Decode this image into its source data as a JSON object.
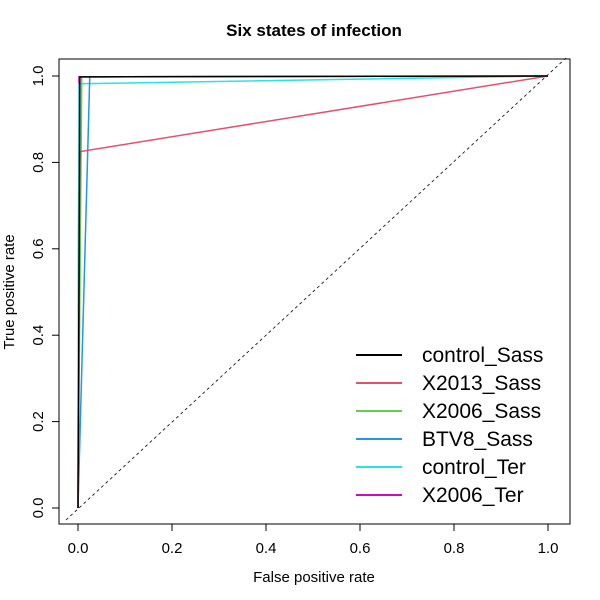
{
  "chart_data": {
    "type": "line",
    "title": "Six states of infection",
    "xlabel": "False positive rate",
    "ylabel": "True positive rate",
    "xlim": [
      0,
      1
    ],
    "ylim": [
      0,
      1
    ],
    "xticks": [
      0,
      0.2,
      0.4,
      0.6,
      0.8,
      1
    ],
    "yticks": [
      0,
      0.2,
      0.4,
      0.6,
      0.8,
      1
    ],
    "xtick_labels": [
      "0.0",
      "0.2",
      "0.4",
      "0.6",
      "0.8",
      "1.0"
    ],
    "ytick_labels": [
      "0.0",
      "0.2",
      "0.4",
      "0.6",
      "0.8",
      "1.0"
    ],
    "legend_position": "bottom-right",
    "diagonal": {
      "x": [
        0,
        1
      ],
      "y": [
        0,
        1
      ],
      "style": "dashed"
    },
    "series": [
      {
        "name": "control_Sass",
        "color": "#000000",
        "x": [
          0,
          0.004,
          1
        ],
        "y": [
          0,
          0.998,
          1
        ]
      },
      {
        "name": "X2013_Sass",
        "color": "#DF536B",
        "x": [
          0,
          0.0,
          0.004,
          1
        ],
        "y": [
          0,
          0.0,
          0.825,
          1
        ]
      },
      {
        "name": "X2006_Sass",
        "color": "#61D04F",
        "x": [
          0,
          0.008,
          1
        ],
        "y": [
          0,
          0.998,
          1
        ]
      },
      {
        "name": "BTV8_Sass",
        "color": "#2297E6",
        "x": [
          0,
          0.025,
          1
        ],
        "y": [
          0,
          0.998,
          1
        ]
      },
      {
        "name": "control_Ter",
        "color": "#28E2E5",
        "x": [
          0,
          0.002,
          1
        ],
        "y": [
          0,
          0.982,
          1
        ]
      },
      {
        "name": "X2006_Ter",
        "color": "#CD0BBC",
        "x": [
          0,
          0.002,
          1
        ],
        "y": [
          0,
          0.998,
          1
        ]
      }
    ]
  }
}
